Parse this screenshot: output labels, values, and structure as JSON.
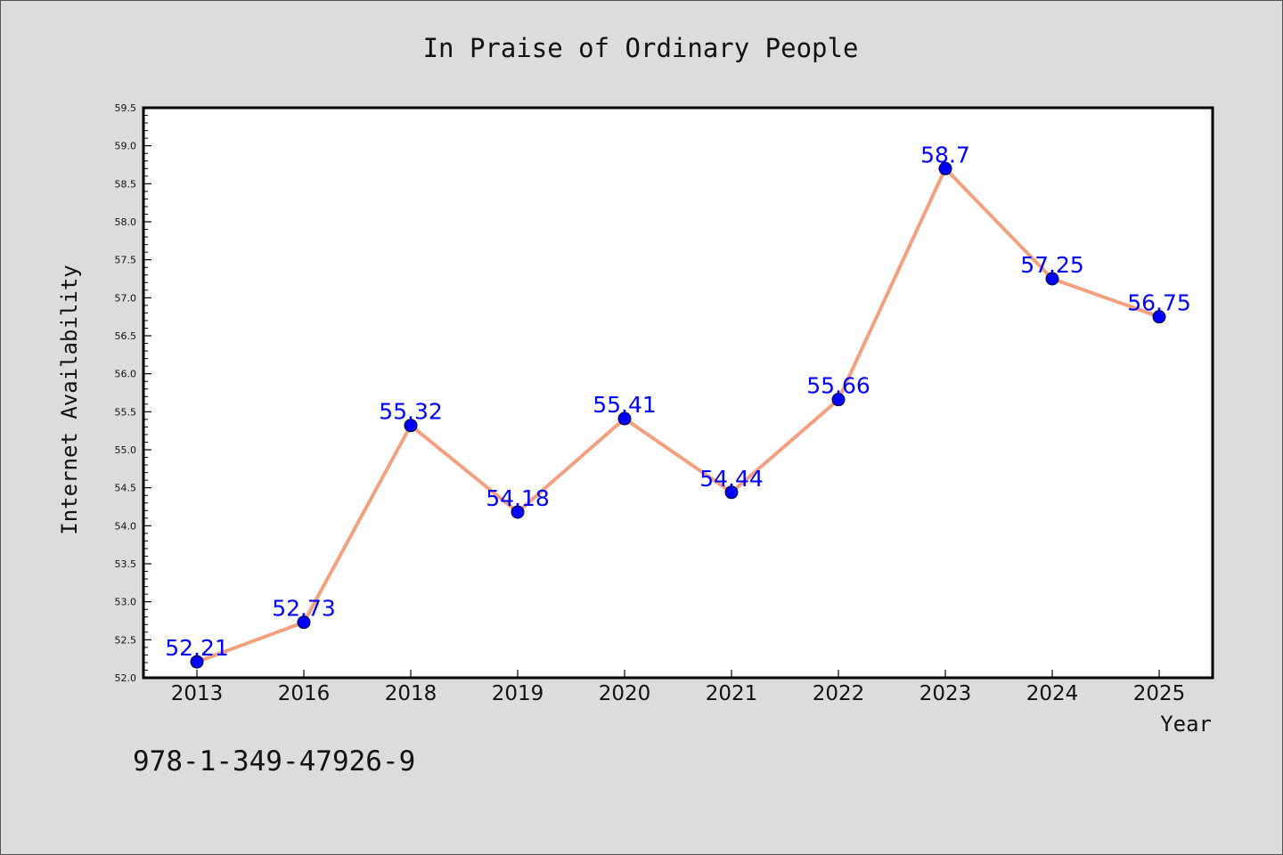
{
  "chart_data": {
    "type": "line",
    "title": "In Praise of Ordinary People",
    "xlabel": "Year",
    "ylabel": "Internet Availability",
    "categories": [
      "2013",
      "2016",
      "2018",
      "2019",
      "2020",
      "2021",
      "2022",
      "2023",
      "2024",
      "2025"
    ],
    "series": [
      {
        "values": [
          52.21,
          52.73,
          55.32,
          54.18,
          55.41,
          54.44,
          55.66,
          58.7,
          57.25,
          56.75
        ],
        "labels": [
          "52.21",
          "52.73",
          "55.32",
          "54.18",
          "55.41",
          "54.44",
          "55.66",
          "58.7",
          "57.25",
          "56.75"
        ]
      }
    ],
    "ylim": [
      52.0,
      59.5
    ],
    "yticks": [
      "52.0",
      "52.5",
      "53.0",
      "53.5",
      "54.0",
      "54.5",
      "55.0",
      "55.5",
      "56.0",
      "56.5",
      "57.0",
      "57.5",
      "58.0",
      "58.5",
      "59.0",
      "59.5"
    ],
    "grid": false,
    "line_color": "#f4a07f",
    "marker_color": "#0000ff",
    "label_color": "#0000ff"
  },
  "footer": {
    "isbn": "978-1-349-47926-9"
  }
}
